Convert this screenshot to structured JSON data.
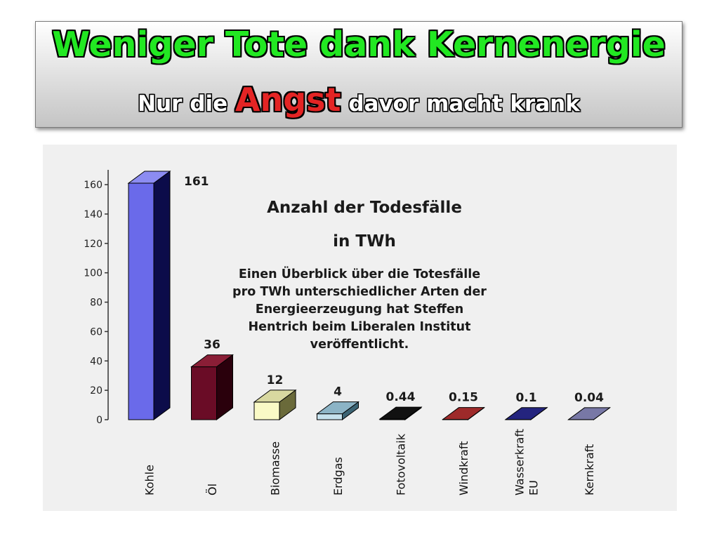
{
  "slide": {
    "title": "Weniger Tote dank Kernenergie",
    "subtitle_before": "Nur die",
    "subtitle_emphasis": "Angst",
    "subtitle_after": "davor macht krank",
    "colors": {
      "title_green": "#22e822",
      "emphasis_red": "#e42424"
    }
  },
  "chart_data": {
    "type": "bar",
    "title_line1": "Anzahl der Todesfälle",
    "title_line2": "in TWh",
    "annotation": "Einen Überblick über die Totesfälle pro TWh unterschiedlicher Arten der Energieerzeugung hat Steffen Hentrich beim Liberalen Institut veröffentlicht.",
    "categories": [
      "Kohle",
      "Öl",
      "Biomasse",
      "Erdgas",
      "Fotovoltaik",
      "Windkraft",
      "Wasserkraft EU",
      "Kernkraft"
    ],
    "values": [
      161,
      36,
      12,
      4,
      0.44,
      0.15,
      0.1,
      0.04
    ],
    "value_labels": [
      "161",
      "36",
      "12",
      "4",
      "0.44",
      "0.15",
      "0.1",
      "0.04"
    ],
    "yticks": [
      0,
      20,
      40,
      60,
      80,
      100,
      120,
      140,
      160
    ],
    "ylim": [
      0,
      161
    ],
    "grid": false,
    "bar_colors": [
      {
        "front": "#6a6aea",
        "side": "#0c0c4a",
        "top": "#8c8cf2"
      },
      {
        "front": "#6a0c26",
        "side": "#2a000c",
        "top": "#8a1e36"
      },
      {
        "front": "#fafac6",
        "side": "#6a6a3a",
        "top": "#d8d8a0"
      },
      {
        "front": "#c6e2ee",
        "side": "#3c6474",
        "top": "#8cb4c6"
      },
      {
        "front": "#000000",
        "side": "#000000",
        "top": "#111111"
      },
      {
        "front": "#8c1e1e",
        "side": "#4a0a0a",
        "top": "#9e2a2a"
      },
      {
        "front": "#1a1a6a",
        "side": "#06062a",
        "top": "#24247e"
      },
      {
        "front": "#6a6a96",
        "side": "#3a3a5a",
        "top": "#7878a6"
      }
    ]
  }
}
